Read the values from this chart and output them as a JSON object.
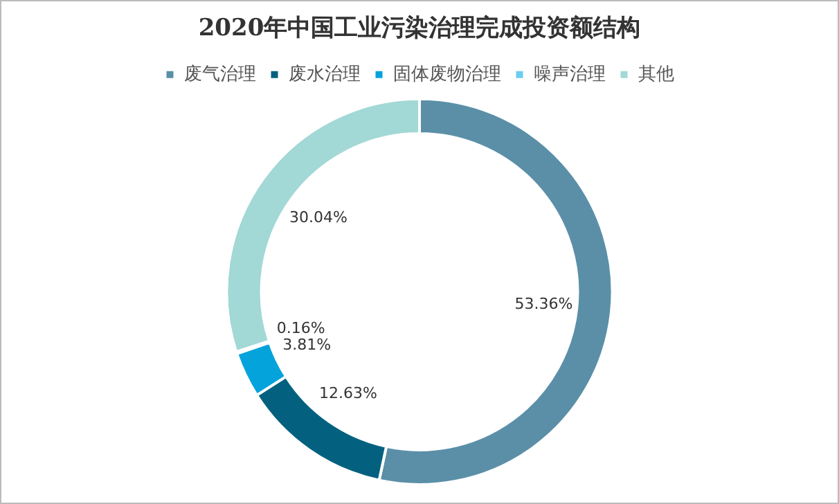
{
  "chart_data": {
    "type": "donut",
    "title": "2020年中国工业污染治理完成投资额结构",
    "categories": [
      "废气治理",
      "废水治理",
      "固体废物治理",
      "噪声治理",
      "其他"
    ],
    "values": [
      53.36,
      12.63,
      3.81,
      0.16,
      30.04
    ],
    "colors": [
      "#5b8fa8",
      "#03617f",
      "#05a3dc",
      "#6ccdf0",
      "#a2d8d6"
    ],
    "value_labels": [
      "53.36%",
      "12.63%",
      "3.81%",
      "0.16%",
      "30.04%"
    ],
    "legend": "top"
  }
}
